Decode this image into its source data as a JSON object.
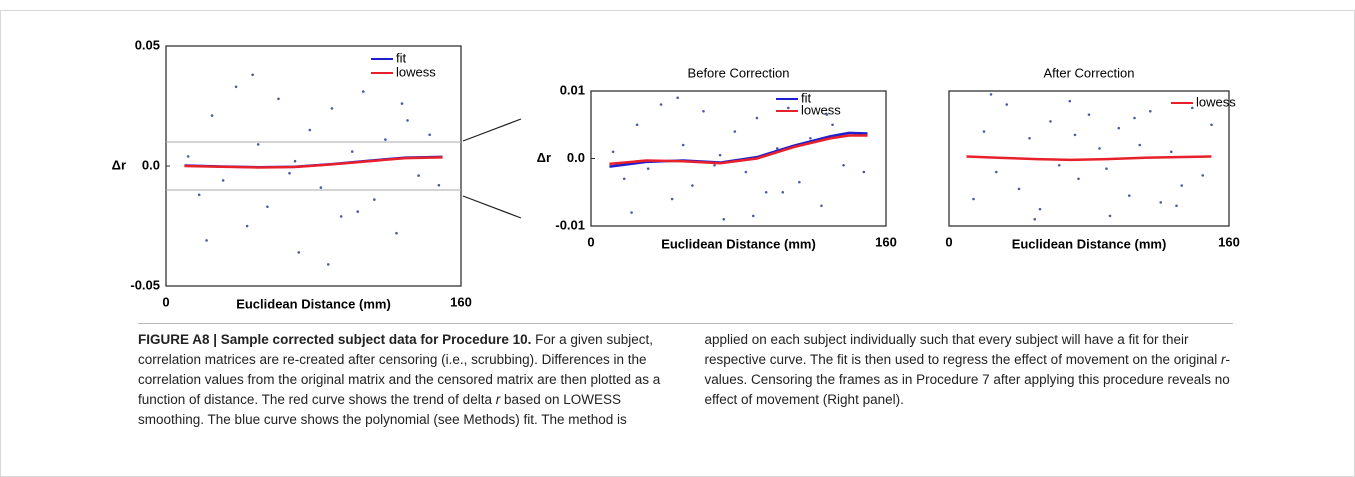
{
  "chart_data": [
    {
      "type": "scatter",
      "xlabel": "Euclidean Distance (mm)",
      "ylabel": "Δr",
      "xlim": [
        0,
        160
      ],
      "ylim": [
        -0.05,
        0.05
      ],
      "xticks": [
        0,
        160
      ],
      "yticks": [
        -0.05,
        {
          "value": 0,
          "label": "0.0"
        },
        0.05
      ],
      "hlines": [
        0.01,
        -0.01
      ],
      "points": {
        "color": "#4a5aa8",
        "x": [
          12,
          18,
          25,
          31,
          38,
          44,
          50,
          55,
          61,
          67,
          72,
          78,
          84,
          90,
          95,
          101,
          107,
          113,
          119,
          125,
          131,
          137,
          143,
          148,
          22,
          47,
          70,
          88,
          104,
          128
        ],
        "y": [
          0.004,
          -0.012,
          0.021,
          -0.006,
          0.033,
          -0.025,
          0.009,
          -0.017,
          0.028,
          -0.003,
          -0.036,
          0.015,
          -0.009,
          0.024,
          -0.021,
          0.006,
          0.031,
          -0.014,
          0.011,
          -0.028,
          0.019,
          -0.004,
          0.013,
          -0.008,
          -0.031,
          0.038,
          0.002,
          -0.041,
          -0.019,
          0.026
        ]
      },
      "series": [
        {
          "name": "fit",
          "color": "#1f1fd0",
          "x": [
            10,
            30,
            50,
            70,
            90,
            110,
            130,
            150
          ],
          "values": [
            0.0002,
            -0.0002,
            -0.0005,
            -0.0003,
            0.0008,
            0.0022,
            0.0035,
            0.0038
          ]
        },
        {
          "name": "lowess",
          "color": "#e8202a",
          "x": [
            10,
            30,
            50,
            70,
            90,
            110,
            130,
            150
          ],
          "values": [
            0,
            -0.0003,
            -0.0006,
            -0.0004,
            0.0007,
            0.002,
            0.0033,
            0.0036
          ]
        }
      ]
    },
    {
      "type": "scatter",
      "title": "Before Correction",
      "xlabel": "Euclidean Distance (mm)",
      "ylabel": "Δr",
      "xlim": [
        0,
        160
      ],
      "ylim": [
        -0.01,
        0.01
      ],
      "xticks": [
        0,
        160
      ],
      "yticks": [
        -0.01,
        {
          "value": 0,
          "label": "0.0"
        },
        0.01
      ],
      "points": {
        "color": "#4a5aa8",
        "x": [
          12,
          18,
          25,
          31,
          38,
          44,
          50,
          55,
          61,
          67,
          72,
          78,
          84,
          90,
          95,
          101,
          107,
          113,
          119,
          125,
          131,
          137,
          143,
          148,
          22,
          47,
          70,
          88,
          104,
          128
        ],
        "y": [
          0.001,
          -0.003,
          0.005,
          -0.0015,
          0.008,
          -0.006,
          0.002,
          -0.004,
          0.007,
          -0.001,
          -0.009,
          0.004,
          -0.002,
          0.006,
          -0.005,
          0.0015,
          0.0075,
          -0.0035,
          0.003,
          -0.007,
          0.005,
          -0.001,
          0.0035,
          -0.002,
          -0.008,
          0.009,
          0.0005,
          -0.0085,
          -0.005,
          0.0065
        ]
      },
      "series": [
        {
          "name": "fit",
          "color": "#1f1fd0",
          "x": [
            10,
            30,
            50,
            70,
            90,
            110,
            130,
            140,
            150
          ],
          "values": [
            -0.0012,
            -0.0005,
            -0.0003,
            -0.0006,
            0.0002,
            0.0019,
            0.0033,
            0.0038,
            0.0037
          ]
        },
        {
          "name": "lowess",
          "color": "#e8202a",
          "x": [
            10,
            30,
            50,
            70,
            90,
            110,
            130,
            140,
            150
          ],
          "values": [
            -0.0008,
            -0.0003,
            -0.0004,
            -0.0007,
            0,
            0.0017,
            0.003,
            0.0034,
            0.0034
          ]
        }
      ]
    },
    {
      "type": "scatter",
      "title": "After Correction",
      "xlabel": "Euclidean Distance (mm)",
      "xlim": [
        0,
        160
      ],
      "ylim": [
        -0.01,
        0.01
      ],
      "xticks": [
        0,
        160
      ],
      "points": {
        "color": "#4a5aa8",
        "x": [
          14,
          20,
          27,
          33,
          40,
          46,
          52,
          58,
          63,
          69,
          74,
          80,
          86,
          92,
          97,
          103,
          109,
          115,
          121,
          127,
          133,
          139,
          145,
          150,
          24,
          49,
          72,
          90,
          106,
          130
        ],
        "y": [
          -0.006,
          0.004,
          -0.002,
          0.008,
          -0.0045,
          0.003,
          -0.0075,
          0.0055,
          -0.001,
          0.0085,
          -0.003,
          0.0065,
          0.0015,
          -0.0085,
          0.0045,
          -0.0055,
          0.002,
          0.007,
          -0.0065,
          0.001,
          -0.004,
          0.0075,
          -0.0025,
          0.005,
          0.0095,
          -0.009,
          0.0035,
          -0.0015,
          0.006,
          -0.007
        ]
      },
      "series": [
        {
          "name": "lowess",
          "color": "#e8202a",
          "x": [
            10,
            30,
            50,
            70,
            90,
            110,
            130,
            150
          ],
          "values": [
            0.0003,
            0.0001,
            -0.0001,
            -0.0002,
            -0.0001,
            0.0001,
            0.0002,
            0.0003
          ]
        }
      ]
    }
  ],
  "caption": {
    "title": "FIGURE A8 | Sample corrected subject data for Procedure 10.",
    "segments": [
      " For a given subject, correlation matrices are re-created after censoring (i.e., scrubbing). Differences in the correlation values from the original matrix and the censored matrix are then plotted as a function of distance. The red curve shows the trend of delta ",
      "r",
      " based on LOWESS smoothing. The blue curve shows the polynomial (see Methods) fit. The method is applied on each subject individually such that every subject will have a fit for their respective curve. The fit is then used to regress the effect of movement on the original ",
      "r",
      "-values. Censoring the frames as in Procedure 7 after applying this procedure reveals no effect of movement (Right panel)."
    ]
  }
}
